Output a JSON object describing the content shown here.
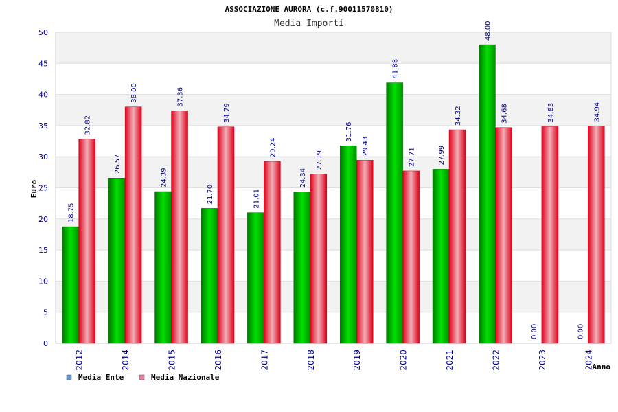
{
  "chart_data": {
    "type": "bar",
    "title": "ASSOCIAZIONE AURORA (c.f.90011570810)",
    "subtitle": "Media Importi",
    "ylabel": "Euro",
    "xlabel": "Anno",
    "ylim": [
      0,
      50
    ],
    "yticks": [
      0,
      5,
      10,
      15,
      20,
      25,
      30,
      35,
      40,
      45,
      50
    ],
    "grid": true,
    "legend_position": "bottom-left",
    "categories": [
      "2012",
      "2014",
      "2015",
      "2016",
      "2017",
      "2018",
      "2019",
      "2020",
      "2021",
      "2022",
      "2023",
      "2024"
    ],
    "series": [
      {
        "name": "Media Ente",
        "color": "#00b000",
        "legend_color": "#5b9bd5",
        "values": [
          18.75,
          26.57,
          24.39,
          21.7,
          21.01,
          24.34,
          31.76,
          41.88,
          27.99,
          48.0,
          0.0,
          0.0
        ],
        "labels": [
          "18.75",
          "26.57",
          "24.39",
          "21.70",
          "21.01",
          "24.34",
          "31.76",
          "41.88",
          "27.99",
          "48.00",
          "0.00",
          "0.00"
        ]
      },
      {
        "name": "Media Nazionale",
        "color": "#e8001c",
        "legend_color": "#e57fa8",
        "values": [
          32.82,
          38.0,
          37.36,
          34.79,
          29.24,
          27.19,
          29.43,
          27.71,
          34.32,
          34.68,
          34.83,
          34.94
        ],
        "labels": [
          "32.82",
          "38.00",
          "37.36",
          "34.79",
          "29.24",
          "27.19",
          "29.43",
          "27.71",
          "34.32",
          "34.68",
          "34.83",
          "34.94"
        ]
      }
    ]
  }
}
